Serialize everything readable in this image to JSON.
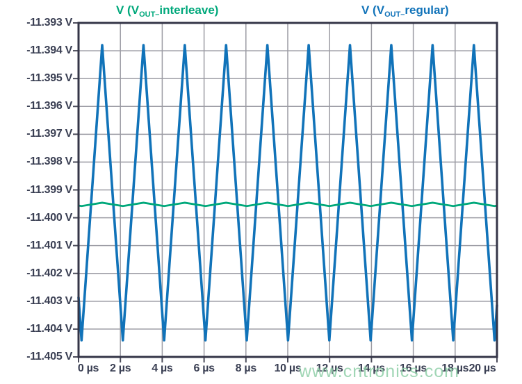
{
  "watermark": "www.cntronics.com",
  "chart_data": {
    "type": "line",
    "title": "",
    "grid": true,
    "legend_position": "top",
    "x_unit": "µs",
    "y_unit": "V",
    "x_range_us": [
      0,
      20
    ],
    "y_range_v": [
      -11.405,
      -11.393
    ],
    "x_tick_step_us": 2,
    "y_tick_step_v": 0.001,
    "x_ticks": [
      "0 µs",
      "2 µs",
      "4 µs",
      "6 µs",
      "8 µs",
      "10 µs",
      "12 µs",
      "14 µs",
      "16 µs",
      "18 µs",
      "20 µs"
    ],
    "y_ticks": [
      "-11.393 V",
      "-11.394 V",
      "-11.395 V",
      "-11.396 V",
      "-11.397 V",
      "-11.398 V",
      "-11.399 V",
      "-11.400 V",
      "-11.401 V",
      "-11.402 V",
      "-11.403 V",
      "-11.404 V",
      "-11.405 V"
    ],
    "legend": [
      {
        "prefix": "V (V",
        "sub": "OUT–",
        "suffix": "interleave)",
        "color": "#00a87b"
      },
      {
        "prefix": "V (V",
        "sub": "OUT–",
        "suffix": "regular)",
        "color": "#1173b9"
      }
    ],
    "series": [
      {
        "name": "V_OUT_regular",
        "shape": "triangle",
        "color": "#1173b9",
        "stroke_width": 3.6,
        "max_v": -11.3938,
        "min_v": -11.4044,
        "period_us": 1.974,
        "peak_at_us": 1.13
      },
      {
        "name": "V_OUT_interleave",
        "shape": "triangle",
        "color": "#00a87b",
        "stroke_width": 2.8,
        "max_v": -11.39946,
        "min_v": -11.39958,
        "period_us": 1.974,
        "peak_at_us": 1.13
      }
    ],
    "colors": {
      "grid": "#9b9ba3",
      "border": "#343547",
      "tick": "#4b4c5a",
      "tick_text": "#3a3f53",
      "background": "#ffffff"
    }
  }
}
